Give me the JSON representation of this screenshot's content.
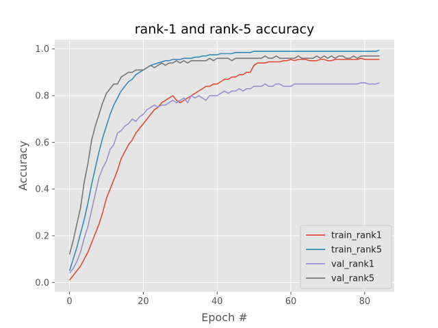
{
  "chart_data": {
    "type": "line",
    "title": "rank-1 and rank-5 accuracy",
    "xlabel": "Epoch #",
    "ylabel": "Accuracy",
    "xlim": [
      -4,
      88
    ],
    "ylim": [
      -0.04,
      1.04
    ],
    "xticks": [
      0,
      20,
      40,
      60,
      80
    ],
    "yticks": [
      0.0,
      0.2,
      0.4,
      0.6,
      0.8,
      1.0
    ],
    "grid": true,
    "legend_position": "lower-right",
    "background_color": "#e5e5e5",
    "series": [
      {
        "name": "train_rank1",
        "color": "#e24a33",
        "x": [
          0,
          1,
          2,
          3,
          4,
          5,
          6,
          7,
          8,
          9,
          10,
          11,
          12,
          13,
          14,
          15,
          16,
          17,
          18,
          19,
          20,
          21,
          22,
          23,
          24,
          25,
          26,
          27,
          28,
          29,
          30,
          31,
          32,
          33,
          34,
          35,
          36,
          37,
          38,
          39,
          40,
          41,
          42,
          43,
          44,
          45,
          46,
          47,
          48,
          49,
          50,
          51,
          52,
          53,
          54,
          55,
          56,
          57,
          58,
          59,
          60,
          61,
          62,
          63,
          64,
          65,
          66,
          67,
          68,
          69,
          70,
          71,
          72,
          73,
          74,
          75,
          76,
          77,
          78,
          79,
          80,
          81,
          82,
          83,
          84
        ],
        "values": [
          0.01,
          0.03,
          0.05,
          0.07,
          0.1,
          0.13,
          0.17,
          0.21,
          0.25,
          0.3,
          0.36,
          0.4,
          0.44,
          0.48,
          0.53,
          0.56,
          0.59,
          0.61,
          0.64,
          0.66,
          0.68,
          0.7,
          0.72,
          0.74,
          0.75,
          0.77,
          0.78,
          0.79,
          0.8,
          0.78,
          0.77,
          0.78,
          0.79,
          0.8,
          0.81,
          0.82,
          0.83,
          0.84,
          0.84,
          0.85,
          0.85,
          0.86,
          0.87,
          0.87,
          0.88,
          0.88,
          0.89,
          0.89,
          0.9,
          0.9,
          0.93,
          0.94,
          0.94,
          0.94,
          0.945,
          0.945,
          0.945,
          0.945,
          0.95,
          0.95,
          0.955,
          0.95,
          0.955,
          0.955,
          0.955,
          0.95,
          0.95,
          0.95,
          0.955,
          0.955,
          0.95,
          0.95,
          0.955,
          0.955,
          0.955,
          0.955,
          0.955,
          0.955,
          0.955,
          0.96,
          0.955,
          0.955,
          0.955,
          0.955,
          0.955
        ]
      },
      {
        "name": "train_rank5",
        "color": "#348abd",
        "x": [
          0,
          1,
          2,
          3,
          4,
          5,
          6,
          7,
          8,
          9,
          10,
          11,
          12,
          13,
          14,
          15,
          16,
          17,
          18,
          19,
          20,
          21,
          22,
          23,
          24,
          25,
          26,
          27,
          28,
          29,
          30,
          31,
          32,
          33,
          34,
          35,
          36,
          37,
          38,
          39,
          40,
          41,
          42,
          43,
          44,
          45,
          46,
          47,
          48,
          49,
          50,
          51,
          52,
          53,
          54,
          55,
          56,
          57,
          58,
          59,
          60,
          61,
          62,
          63,
          64,
          65,
          66,
          67,
          68,
          69,
          70,
          71,
          72,
          73,
          74,
          75,
          76,
          77,
          78,
          79,
          80,
          81,
          82,
          83,
          84
        ],
        "values": [
          0.05,
          0.1,
          0.15,
          0.21,
          0.27,
          0.34,
          0.42,
          0.49,
          0.56,
          0.62,
          0.67,
          0.72,
          0.76,
          0.79,
          0.82,
          0.84,
          0.86,
          0.87,
          0.89,
          0.9,
          0.91,
          0.92,
          0.93,
          0.935,
          0.94,
          0.945,
          0.95,
          0.95,
          0.955,
          0.955,
          0.955,
          0.96,
          0.96,
          0.96,
          0.965,
          0.965,
          0.97,
          0.97,
          0.975,
          0.975,
          0.975,
          0.98,
          0.98,
          0.98,
          0.98,
          0.985,
          0.985,
          0.985,
          0.985,
          0.985,
          0.99,
          0.99,
          0.99,
          0.99,
          0.99,
          0.99,
          0.99,
          0.99,
          0.99,
          0.99,
          0.99,
          0.99,
          0.99,
          0.99,
          0.99,
          0.99,
          0.99,
          0.99,
          0.99,
          0.99,
          0.99,
          0.99,
          0.99,
          0.99,
          0.99,
          0.99,
          0.99,
          0.99,
          0.99,
          0.99,
          0.99,
          0.99,
          0.99,
          0.99,
          0.995
        ]
      },
      {
        "name": "val_rank1",
        "color": "#988ed5",
        "x": [
          0,
          1,
          2,
          3,
          4,
          5,
          6,
          7,
          8,
          9,
          10,
          11,
          12,
          13,
          14,
          15,
          16,
          17,
          18,
          19,
          20,
          21,
          22,
          23,
          24,
          25,
          26,
          27,
          28,
          29,
          30,
          31,
          32,
          33,
          34,
          35,
          36,
          37,
          38,
          39,
          40,
          41,
          42,
          43,
          44,
          45,
          46,
          47,
          48,
          49,
          50,
          51,
          52,
          53,
          54,
          55,
          56,
          57,
          58,
          59,
          60,
          61,
          62,
          63,
          64,
          65,
          66,
          67,
          68,
          69,
          70,
          71,
          72,
          73,
          74,
          75,
          76,
          77,
          78,
          79,
          80,
          81,
          82,
          83,
          84
        ],
        "values": [
          0.04,
          0.06,
          0.09,
          0.13,
          0.19,
          0.24,
          0.31,
          0.38,
          0.45,
          0.49,
          0.52,
          0.57,
          0.59,
          0.64,
          0.65,
          0.67,
          0.68,
          0.7,
          0.69,
          0.71,
          0.72,
          0.74,
          0.75,
          0.76,
          0.75,
          0.76,
          0.76,
          0.77,
          0.78,
          0.77,
          0.78,
          0.79,
          0.77,
          0.8,
          0.79,
          0.8,
          0.79,
          0.78,
          0.8,
          0.8,
          0.8,
          0.81,
          0.82,
          0.81,
          0.82,
          0.82,
          0.83,
          0.82,
          0.83,
          0.83,
          0.84,
          0.84,
          0.84,
          0.85,
          0.84,
          0.84,
          0.85,
          0.85,
          0.84,
          0.84,
          0.84,
          0.85,
          0.85,
          0.85,
          0.85,
          0.85,
          0.85,
          0.85,
          0.85,
          0.85,
          0.85,
          0.85,
          0.85,
          0.85,
          0.85,
          0.85,
          0.85,
          0.85,
          0.85,
          0.855,
          0.855,
          0.85,
          0.85,
          0.85,
          0.855
        ]
      },
      {
        "name": "val_rank5",
        "color": "#777777",
        "x": [
          0,
          1,
          2,
          3,
          4,
          5,
          6,
          7,
          8,
          9,
          10,
          11,
          12,
          13,
          14,
          15,
          16,
          17,
          18,
          19,
          20,
          21,
          22,
          23,
          24,
          25,
          26,
          27,
          28,
          29,
          30,
          31,
          32,
          33,
          34,
          35,
          36,
          37,
          38,
          39,
          40,
          41,
          42,
          43,
          44,
          45,
          46,
          47,
          48,
          49,
          50,
          51,
          52,
          53,
          54,
          55,
          56,
          57,
          58,
          59,
          60,
          61,
          62,
          63,
          64,
          65,
          66,
          67,
          68,
          69,
          70,
          71,
          72,
          73,
          74,
          75,
          76,
          77,
          78,
          79,
          80,
          81,
          82,
          83,
          84
        ],
        "values": [
          0.12,
          0.18,
          0.25,
          0.32,
          0.43,
          0.51,
          0.61,
          0.67,
          0.72,
          0.77,
          0.81,
          0.83,
          0.85,
          0.85,
          0.88,
          0.89,
          0.9,
          0.9,
          0.91,
          0.91,
          0.91,
          0.92,
          0.93,
          0.92,
          0.93,
          0.94,
          0.93,
          0.94,
          0.94,
          0.95,
          0.94,
          0.95,
          0.94,
          0.95,
          0.95,
          0.95,
          0.95,
          0.95,
          0.96,
          0.95,
          0.96,
          0.96,
          0.96,
          0.96,
          0.95,
          0.96,
          0.96,
          0.96,
          0.96,
          0.96,
          0.96,
          0.96,
          0.96,
          0.97,
          0.96,
          0.96,
          0.97,
          0.96,
          0.96,
          0.96,
          0.96,
          0.96,
          0.97,
          0.96,
          0.96,
          0.96,
          0.96,
          0.97,
          0.96,
          0.97,
          0.96,
          0.97,
          0.96,
          0.97,
          0.97,
          0.96,
          0.96,
          0.97,
          0.96,
          0.97,
          0.97,
          0.97,
          0.97,
          0.97,
          0.97
        ]
      }
    ]
  }
}
